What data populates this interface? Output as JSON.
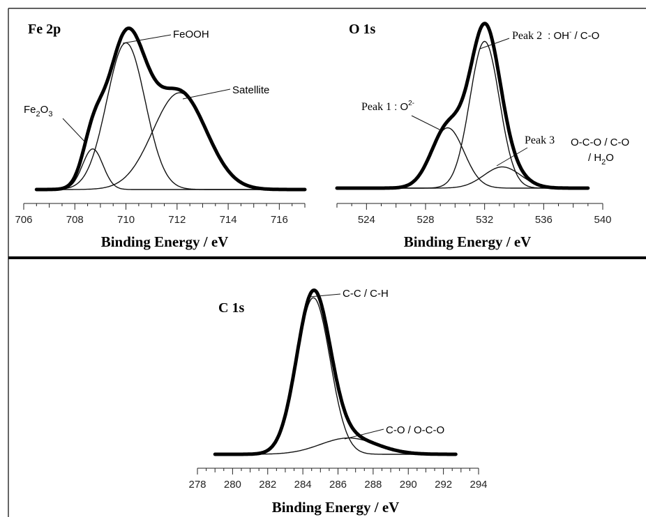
{
  "chart_data": [
    {
      "type": "line",
      "panel_label": "Fe 2p",
      "xlabel": "Binding Energy / eV",
      "xlim": [
        706,
        717
      ],
      "xticks": [
        706,
        708,
        710,
        712,
        714,
        716
      ],
      "background": 0.06,
      "components": [
        {
          "name": "FeOOH",
          "center": 710.0,
          "amplitude": 0.94,
          "sigma": 0.75
        },
        {
          "name": "Fe2O3",
          "center": 708.7,
          "amplitude": 0.26,
          "sigma": 0.4
        },
        {
          "name": "Satellite",
          "center": 712.1,
          "amplitude": 0.62,
          "sigma": 1.05
        }
      ],
      "annotations": [
        {
          "text": "FeOOH",
          "x": 710.0
        },
        {
          "text_main": "Fe",
          "sub1": "2",
          "mid": "O",
          "sub2": "3",
          "x": 708.7
        },
        {
          "text": "Satellite",
          "x": 712.1
        }
      ]
    },
    {
      "type": "line",
      "panel_label": "O 1s",
      "xlabel": "Binding Energy / eV",
      "xlim": [
        522,
        540
      ],
      "xticks": [
        524,
        528,
        532,
        536,
        540
      ],
      "background": 0.03,
      "components": [
        {
          "name": "Peak 1",
          "center": 529.5,
          "amplitude": 0.37,
          "sigma": 1.1
        },
        {
          "name": "Peak 2",
          "center": 532.0,
          "amplitude": 0.9,
          "sigma": 1.0
        },
        {
          "name": "Peak 3",
          "center": 533.2,
          "amplitude": 0.13,
          "sigma": 1.25
        }
      ],
      "annotations": [
        {
          "label": "Peak 1",
          "species": "O",
          "sup": "2-",
          "x": 529.5
        },
        {
          "label": "Peak 2",
          "species": "OH",
          "sup": "-",
          "rest": " / C-O",
          "x": 532.0
        },
        {
          "label": "Peak 3",
          "line1": "O-C-O / C-O",
          "line2_pre": "/ H",
          "sub": "2",
          "line2_post": "O",
          "x": 533.2
        }
      ]
    },
    {
      "type": "line",
      "panel_label": "C 1s",
      "xlabel": "Binding Energy / eV",
      "xlim": [
        278,
        294
      ],
      "xticks": [
        278,
        280,
        282,
        284,
        286,
        288,
        290,
        292,
        294
      ],
      "background": 0.02,
      "components": [
        {
          "name": "C-C / C-H",
          "center": 284.6,
          "amplitude": 0.96,
          "sigma": 0.95
        },
        {
          "name": "C-O / O-C-O",
          "center": 286.6,
          "amplitude": 0.1,
          "sigma": 1.6
        }
      ],
      "annotations": [
        {
          "text": "C-C / C-H",
          "x": 284.6
        },
        {
          "text": "C-O / O-C-O",
          "x": 286.6
        }
      ]
    }
  ]
}
